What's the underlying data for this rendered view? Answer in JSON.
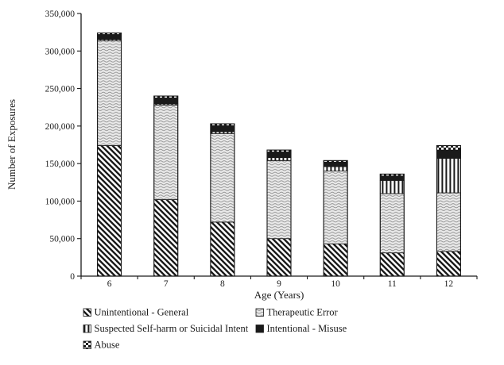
{
  "figure": {
    "background": "#ffffff",
    "ink_color": "#1a1a1a",
    "wave_bg_color": "#e9e9e9",
    "wave_line_color": "#8e8e8e"
  },
  "chart_data": {
    "type": "bar",
    "stacked": true,
    "title": "",
    "xlabel": "Age (Years)",
    "ylabel": "Number of Exposures",
    "categories": [
      "6",
      "7",
      "8",
      "9",
      "10",
      "11",
      "12"
    ],
    "series": [
      {
        "name": "Unintentional - General",
        "pattern": "diagonal-hatch",
        "values": [
          174000,
          102000,
          72000,
          50000,
          43000,
          31000,
          33000
        ]
      },
      {
        "name": "Therapeutic Error",
        "pattern": "wave",
        "values": [
          140000,
          126000,
          118000,
          104000,
          97000,
          79000,
          78000
        ]
      },
      {
        "name": "Suspected Self-harm or Suicidal Intent",
        "pattern": "vertical-lines",
        "values": [
          1500,
          1500,
          2500,
          4000,
          6000,
          17500,
          46000
        ]
      },
      {
        "name": "Intentional - Misuse",
        "pattern": "solid-black",
        "values": [
          6500,
          8000,
          8000,
          7500,
          6000,
          6000,
          11000
        ]
      },
      {
        "name": "Abuse",
        "pattern": "checker",
        "values": [
          2000,
          2500,
          2500,
          2500,
          2000,
          2500,
          6000
        ]
      }
    ],
    "totals": [
      324000,
      240000,
      203000,
      168000,
      154000,
      136000,
      174000
    ],
    "ylim": [
      0,
      350000
    ],
    "ytick_step": 50000,
    "ytick_labels": [
      "0",
      "50,000",
      "100,000",
      "150,000",
      "200,000",
      "250,000",
      "300,000",
      "350,000"
    ],
    "grid": false,
    "legend_position": "bottom",
    "legend_layout": [
      {
        "series": 0,
        "col": 0,
        "row": 0
      },
      {
        "series": 1,
        "col": 1,
        "row": 0
      },
      {
        "series": 2,
        "col": 0,
        "row": 1
      },
      {
        "series": 3,
        "col": 1,
        "row": 1
      },
      {
        "series": 4,
        "col": 0,
        "row": 2
      }
    ]
  }
}
